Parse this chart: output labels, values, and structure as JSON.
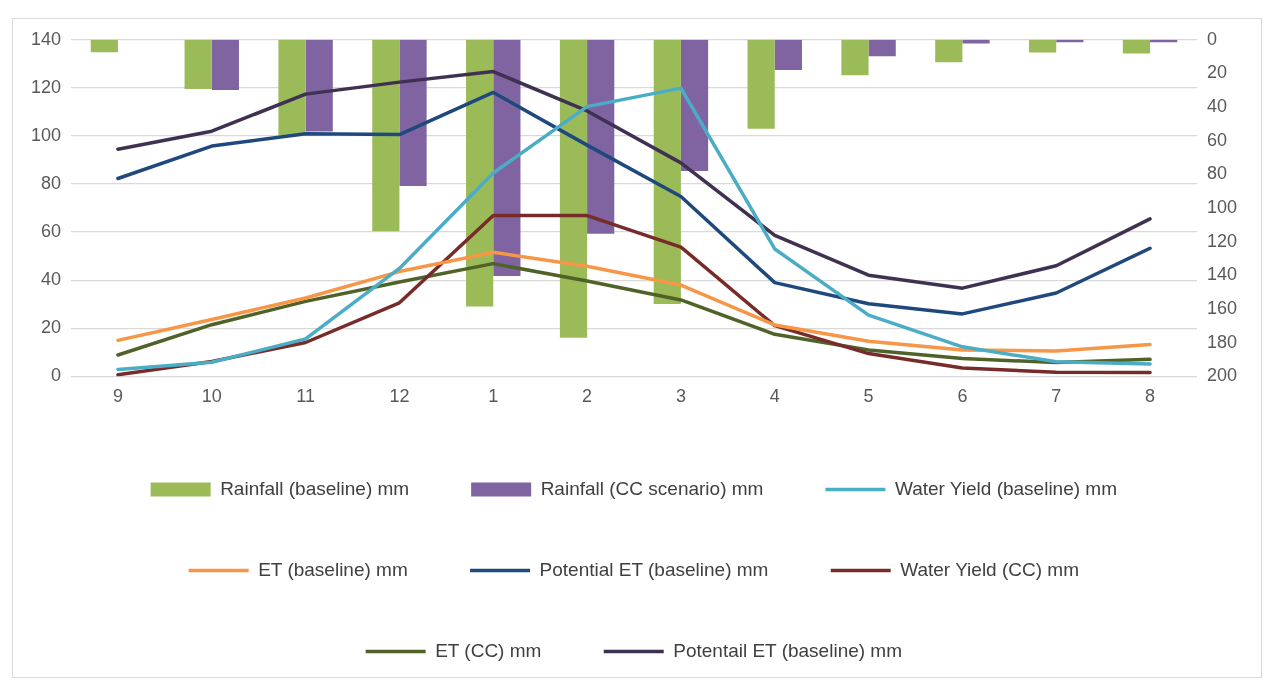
{
  "chart_data": {
    "type": "bar",
    "categories": [
      "9",
      "10",
      "11",
      "12",
      "1",
      "2",
      "3",
      "4",
      "5",
      "6",
      "7",
      "8"
    ],
    "series": [
      {
        "name": "Rainfall (baseline) mm",
        "axis": "y2",
        "color": "#9bbb59",
        "values": [
          7.4,
          29.2,
          56.7,
          113.8,
          158.5,
          177,
          157,
          52.8,
          21,
          13.3,
          7.6,
          8.1
        ]
      },
      {
        "name": "Rainfall (CC scenario) mm",
        "axis": "y2",
        "color": "#8064a2",
        "values": [
          0,
          29.8,
          54.5,
          86.9,
          140.4,
          115.3,
          78,
          18,
          9.8,
          2.2,
          1.5,
          1.5
        ]
      },
      {
        "name": "Water Yield (baseline) mm",
        "type": "line",
        "color": "#4bacc6",
        "values": [
          2.9,
          5.9,
          15.6,
          44.9,
          84.6,
          112.2,
          119.9,
          53,
          25.5,
          12.3,
          6.1,
          5.2
        ]
      },
      {
        "name": "ET (baseline) mm",
        "type": "line",
        "color": "#f79646",
        "values": [
          15,
          23.7,
          32.6,
          43.6,
          51.6,
          45.8,
          38,
          21.4,
          14.6,
          11,
          10.6,
          13.3
        ]
      },
      {
        "name": "Potential ET (baseline) mm",
        "type": "line",
        "color": "#1f497d",
        "values": [
          82.3,
          95.8,
          100.9,
          100.6,
          118.1,
          96.2,
          74.8,
          39,
          30.2,
          26,
          34.7,
          53.3
        ]
      },
      {
        "name": "Water Yield (CC) mm",
        "type": "line",
        "color": "#772c2a",
        "values": [
          0.7,
          6.2,
          14.1,
          30.6,
          66.9,
          66.9,
          53.8,
          21.1,
          9.5,
          3.5,
          1.7,
          1.6
        ]
      },
      {
        "name": "ET (CC) mm",
        "type": "line",
        "color": "#4f6228",
        "values": [
          8.9,
          21.5,
          31.2,
          39.3,
          46.9,
          39.7,
          31.8,
          17.5,
          11,
          7.4,
          5.8,
          7.1
        ]
      },
      {
        "name": "Potentail ET (baseline) mm",
        "type": "line",
        "color": "#403152",
        "values": [
          94.5,
          102,
          117.4,
          122.4,
          126.8,
          110.4,
          88.8,
          58.7,
          42.1,
          36.7,
          46,
          65.5
        ]
      }
    ],
    "ylim": [
      0,
      140
    ],
    "yticks": [
      0,
      20,
      40,
      60,
      80,
      100,
      120,
      140
    ],
    "y2lim": [
      200,
      0
    ],
    "y2ticks": [
      0,
      20,
      40,
      60,
      80,
      100,
      120,
      140,
      160,
      180,
      200
    ],
    "grid": "y",
    "legend": "bottom",
    "marker": "none",
    "line_style": "solid"
  }
}
